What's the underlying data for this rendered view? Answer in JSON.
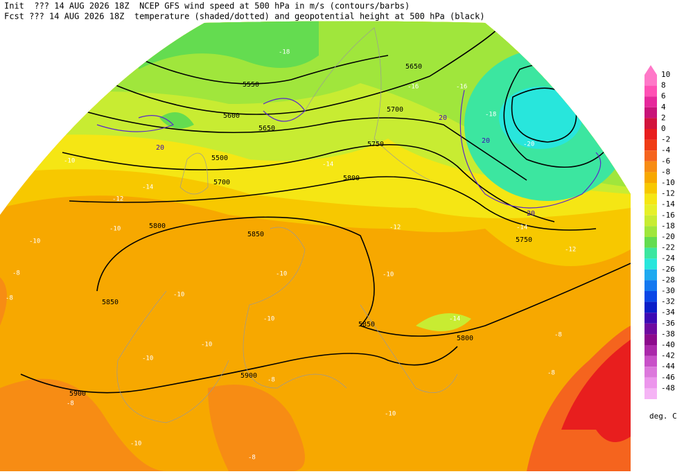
{
  "header": {
    "line1": "Init  ??? 14 AUG 2026 18Z  NCEP GFS wind speed at 500 hPa in m/s (contours/barbs)",
    "line2": "Fcst ??? 14 AUG 2026 18Z  temperature (shaded/dotted) and geopotential height at 500 hPa (black)"
  },
  "colorbar": {
    "levels": [
      10,
      8,
      6,
      4,
      2,
      0,
      -2,
      -4,
      -6,
      -8,
      -10,
      -12,
      -14,
      -16,
      -18,
      -20,
      -22,
      -24,
      -26,
      -28,
      -30,
      -32,
      -34,
      -36,
      -38,
      -40,
      -42,
      -44,
      -46,
      -48
    ],
    "colors": [
      "#ff78c8",
      "#ff50b4",
      "#e6289b",
      "#c81478",
      "#d2143c",
      "#e81e1e",
      "#f03c14",
      "#f5641e",
      "#f78c14",
      "#f7a800",
      "#f7c800",
      "#f5e614",
      "#e6f028",
      "#c8ec32",
      "#a0e63c",
      "#64dc50",
      "#3ce6a0",
      "#28e6dc",
      "#1eaaf0",
      "#1478f0",
      "#0a46e6",
      "#0a1ec8",
      "#3c0ab4",
      "#6e0aa0",
      "#8c0a8c",
      "#aa28aa",
      "#c850c8",
      "#dc78dc",
      "#ec96ec",
      "#f5b4f5"
    ],
    "unit": "deg. C"
  },
  "height_labels": [
    5550,
    5600,
    5650,
    5500,
    5700,
    5750,
    5800,
    5650,
    5700,
    5800,
    5850,
    5850,
    5800,
    5900,
    5900,
    5750,
    5850
  ],
  "wind_labels": [
    20,
    20,
    20,
    20
  ],
  "temperature_labels": [
    -14,
    -14,
    -12,
    -10,
    -10,
    -8,
    -8,
    -10,
    -12,
    -10,
    -10,
    -10,
    -10,
    -10,
    -10,
    -8,
    -8,
    -10,
    -8,
    -10,
    -14,
    -14,
    -12,
    -8,
    -8,
    -20,
    -18,
    -16,
    -16,
    -18
  ]
}
